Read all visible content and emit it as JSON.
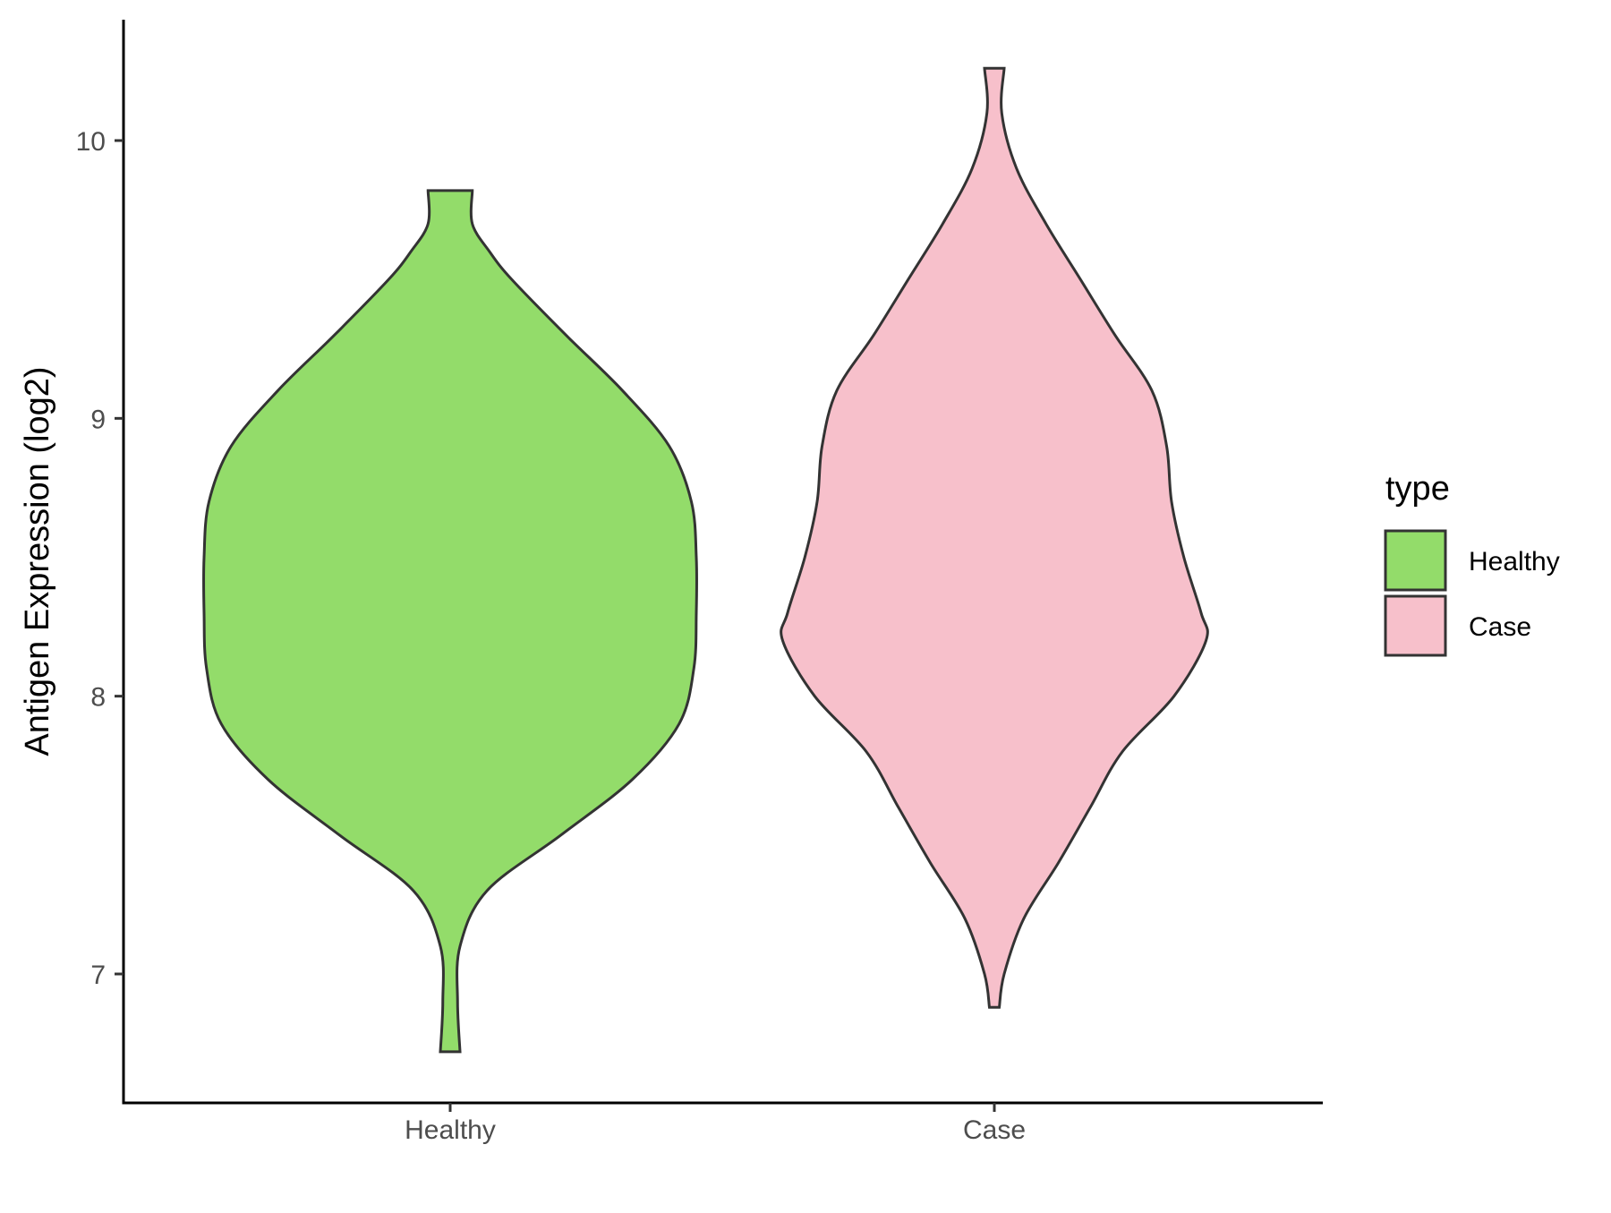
{
  "chart_data": {
    "type": "violin",
    "ylabel": "Antigen Expression (log2)",
    "xlabel": "",
    "ylim": [
      6.58,
      10.43
    ],
    "yticks": [
      7,
      8,
      9,
      10
    ],
    "categories": [
      "Healthy",
      "Case"
    ],
    "legend": {
      "title": "type",
      "placement": "right",
      "entries": [
        {
          "label": "Healthy",
          "color": "#93dc6a"
        },
        {
          "label": "Case",
          "color": "#f7c0cb"
        }
      ]
    },
    "grid": false,
    "violins": [
      {
        "name": "Healthy",
        "color": "#93dc6a",
        "min": 6.72,
        "max": 9.82,
        "density_profile": [
          [
            6.72,
            0.04
          ],
          [
            6.9,
            0.03
          ],
          [
            7.1,
            0.04
          ],
          [
            7.3,
            0.15
          ],
          [
            7.5,
            0.45
          ],
          [
            7.7,
            0.74
          ],
          [
            7.9,
            0.93
          ],
          [
            8.1,
            0.99
          ],
          [
            8.3,
            1.0
          ],
          [
            8.5,
            1.0
          ],
          [
            8.7,
            0.98
          ],
          [
            8.9,
            0.89
          ],
          [
            9.1,
            0.7
          ],
          [
            9.3,
            0.47
          ],
          [
            9.5,
            0.25
          ],
          [
            9.6,
            0.16
          ],
          [
            9.7,
            0.09
          ],
          [
            9.82,
            0.09
          ]
        ]
      },
      {
        "name": "Case",
        "color": "#f7c0cb",
        "min": 6.88,
        "max": 10.26,
        "density_profile": [
          [
            6.88,
            0.02
          ],
          [
            7.0,
            0.04
          ],
          [
            7.2,
            0.12
          ],
          [
            7.4,
            0.26
          ],
          [
            7.6,
            0.39
          ],
          [
            7.8,
            0.52
          ],
          [
            8.0,
            0.73
          ],
          [
            8.2,
            0.86
          ],
          [
            8.3,
            0.84
          ],
          [
            8.5,
            0.77
          ],
          [
            8.7,
            0.72
          ],
          [
            8.9,
            0.7
          ],
          [
            9.1,
            0.64
          ],
          [
            9.3,
            0.49
          ],
          [
            9.5,
            0.35
          ],
          [
            9.7,
            0.21
          ],
          [
            9.9,
            0.09
          ],
          [
            10.1,
            0.03
          ],
          [
            10.26,
            0.04
          ]
        ]
      }
    ]
  }
}
